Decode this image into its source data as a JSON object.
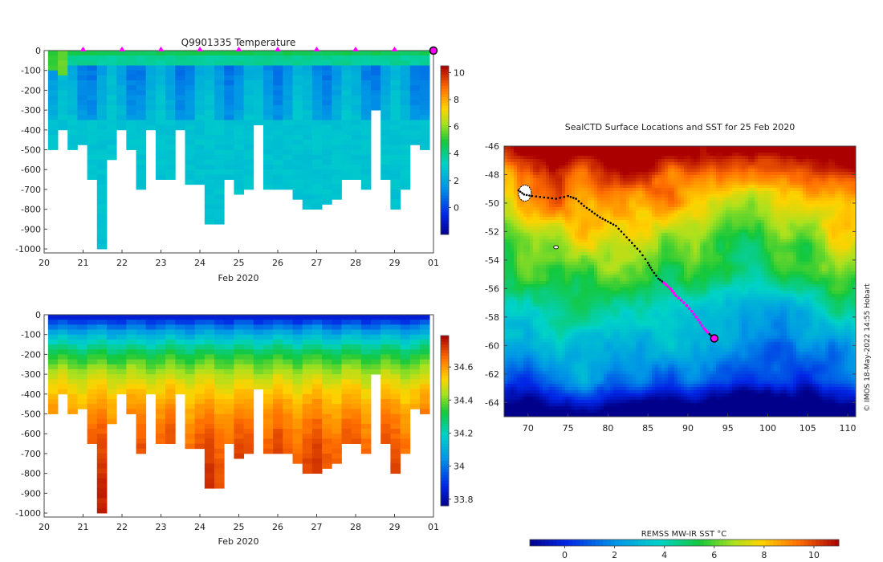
{
  "chart_data": [
    {
      "type": "heatmap",
      "panel": "temperature-profile",
      "title": "Q9901335  Temperature",
      "xlabel": "Feb 2020",
      "x_ticks": [
        "20",
        "21",
        "22",
        "23",
        "24",
        "25",
        "26",
        "27",
        "28",
        "29",
        "01"
      ],
      "xlim": [
        20,
        30
      ],
      "y_ticks": [
        "0",
        "-100",
        "-200",
        "-300",
        "-400",
        "-500",
        "-600",
        "-700",
        "-800",
        "-900",
        "-1000"
      ],
      "ylim": [
        -1020,
        0
      ],
      "colorbar": {
        "ticks": [
          "10",
          "8",
          "6",
          "4",
          "2",
          "0"
        ],
        "range": [
          -2,
          10.5
        ]
      },
      "marker_days": [
        21,
        22,
        23,
        24,
        25,
        26,
        27,
        28,
        29
      ],
      "profile_depths": [
        500,
        400,
        500,
        460,
        650,
        1000,
        530,
        400,
        500,
        700,
        400,
        650,
        650,
        400,
        660,
        660,
        860,
        860,
        650,
        710,
        680,
        360,
        700,
        700,
        690,
        740,
        800,
        800,
        760,
        730,
        640,
        640,
        700,
        300,
        640,
        780,
        700,
        460,
        500
      ]
    },
    {
      "type": "heatmap",
      "panel": "salinity-profile",
      "title": "",
      "xlabel": "Feb 2020",
      "x_ticks": [
        "20",
        "21",
        "22",
        "23",
        "24",
        "25",
        "26",
        "27",
        "28",
        "29",
        "01"
      ],
      "xlim": [
        20,
        30
      ],
      "y_ticks": [
        "0",
        "-100",
        "-200",
        "-300",
        "-400",
        "-500",
        "-600",
        "-700",
        "-800",
        "-900",
        "-1000"
      ],
      "ylim": [
        -1020,
        0
      ],
      "colorbar": {
        "ticks": [
          "34.6",
          "34.4",
          "34.2",
          "34",
          "33.8"
        ],
        "range": [
          33.76,
          34.79
        ]
      },
      "profile_depths": [
        500,
        400,
        500,
        460,
        650,
        1000,
        530,
        400,
        500,
        700,
        400,
        650,
        650,
        400,
        660,
        660,
        860,
        860,
        650,
        710,
        680,
        360,
        700,
        700,
        690,
        740,
        800,
        800,
        760,
        730,
        640,
        640,
        700,
        300,
        640,
        780,
        700,
        460,
        500
      ]
    },
    {
      "type": "heatmap",
      "panel": "sst-map",
      "title": "SealCTD Surface Locations and SST for 25 Feb 2020",
      "x_ticks": [
        "70",
        "75",
        "80",
        "85",
        "90",
        "95",
        "100",
        "105",
        "110"
      ],
      "xlim": [
        67,
        111
      ],
      "y_ticks": [
        "-46",
        "-48",
        "-50",
        "-52",
        "-54",
        "-56",
        "-58",
        "-60",
        "-62",
        "-64"
      ],
      "ylim": [
        -65,
        -46
      ],
      "colorbar": {
        "label": "REMSS MW-IR SST °C",
        "ticks": [
          "0",
          "2",
          "4",
          "6",
          "8",
          "10"
        ],
        "range": [
          -1.4,
          11
        ]
      },
      "track": [
        [
          68.8,
          -49.1
        ],
        [
          69.5,
          -49.4
        ],
        [
          70.5,
          -49.5
        ],
        [
          72,
          -49.6
        ],
        [
          73.5,
          -49.7
        ],
        [
          75,
          -49.5
        ],
        [
          76,
          -49.7
        ],
        [
          77,
          -50.2
        ],
        [
          78,
          -50.6
        ],
        [
          79,
          -51
        ],
        [
          80,
          -51.3
        ],
        [
          81,
          -51.6
        ],
        [
          82,
          -52.2
        ],
        [
          83,
          -52.8
        ],
        [
          84,
          -53.4
        ],
        [
          85,
          -54.2
        ],
        [
          85.5,
          -54.7
        ],
        [
          86.3,
          -55.3
        ],
        [
          87,
          -55.6
        ],
        [
          87.8,
          -56
        ],
        [
          88.5,
          -56.5
        ],
        [
          89.5,
          -57
        ],
        [
          90.5,
          -57.6
        ],
        [
          91.3,
          -58.2
        ],
        [
          92,
          -58.8
        ],
        [
          92.7,
          -59.2
        ],
        [
          93.3,
          -59.5
        ]
      ],
      "highlight_lon_range": [
        87,
        92.5
      ],
      "latest_position": [
        93.3,
        -59.5
      ],
      "credit": "© IMOS 18-May-2022 14:55 Hobart"
    }
  ]
}
